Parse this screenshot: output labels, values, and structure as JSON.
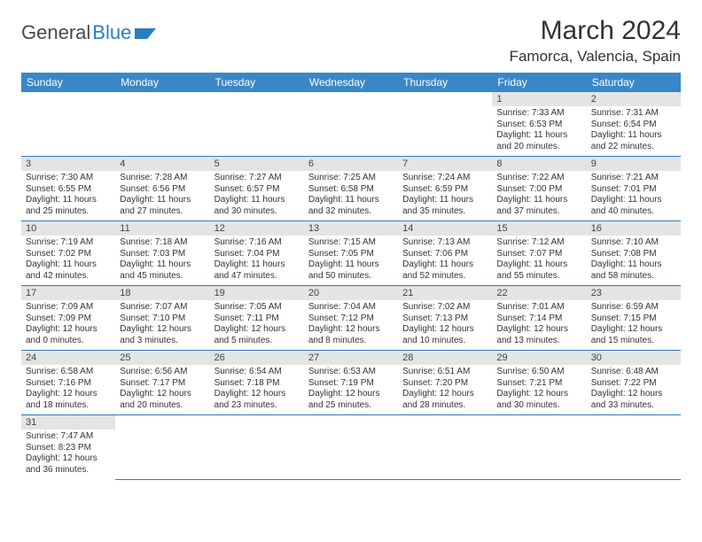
{
  "logo": {
    "text1": "General",
    "text2": "Blue"
  },
  "title": "March 2024",
  "location": "Famorca, Valencia, Spain",
  "weekdays": [
    "Sunday",
    "Monday",
    "Tuesday",
    "Wednesday",
    "Thursday",
    "Friday",
    "Saturday"
  ],
  "colors": {
    "header_bg": "#3a87c7",
    "row_divider": "#2a7fbf",
    "daynum_bg": "#e4e4e4"
  },
  "weeks": [
    [
      null,
      null,
      null,
      null,
      null,
      {
        "n": "1",
        "sr": "Sunrise: 7:33 AM",
        "ss": "Sunset: 6:53 PM",
        "d1": "Daylight: 11 hours",
        "d2": "and 20 minutes."
      },
      {
        "n": "2",
        "sr": "Sunrise: 7:31 AM",
        "ss": "Sunset: 6:54 PM",
        "d1": "Daylight: 11 hours",
        "d2": "and 22 minutes."
      }
    ],
    [
      {
        "n": "3",
        "sr": "Sunrise: 7:30 AM",
        "ss": "Sunset: 6:55 PM",
        "d1": "Daylight: 11 hours",
        "d2": "and 25 minutes."
      },
      {
        "n": "4",
        "sr": "Sunrise: 7:28 AM",
        "ss": "Sunset: 6:56 PM",
        "d1": "Daylight: 11 hours",
        "d2": "and 27 minutes."
      },
      {
        "n": "5",
        "sr": "Sunrise: 7:27 AM",
        "ss": "Sunset: 6:57 PM",
        "d1": "Daylight: 11 hours",
        "d2": "and 30 minutes."
      },
      {
        "n": "6",
        "sr": "Sunrise: 7:25 AM",
        "ss": "Sunset: 6:58 PM",
        "d1": "Daylight: 11 hours",
        "d2": "and 32 minutes."
      },
      {
        "n": "7",
        "sr": "Sunrise: 7:24 AM",
        "ss": "Sunset: 6:59 PM",
        "d1": "Daylight: 11 hours",
        "d2": "and 35 minutes."
      },
      {
        "n": "8",
        "sr": "Sunrise: 7:22 AM",
        "ss": "Sunset: 7:00 PM",
        "d1": "Daylight: 11 hours",
        "d2": "and 37 minutes."
      },
      {
        "n": "9",
        "sr": "Sunrise: 7:21 AM",
        "ss": "Sunset: 7:01 PM",
        "d1": "Daylight: 11 hours",
        "d2": "and 40 minutes."
      }
    ],
    [
      {
        "n": "10",
        "sr": "Sunrise: 7:19 AM",
        "ss": "Sunset: 7:02 PM",
        "d1": "Daylight: 11 hours",
        "d2": "and 42 minutes."
      },
      {
        "n": "11",
        "sr": "Sunrise: 7:18 AM",
        "ss": "Sunset: 7:03 PM",
        "d1": "Daylight: 11 hours",
        "d2": "and 45 minutes."
      },
      {
        "n": "12",
        "sr": "Sunrise: 7:16 AM",
        "ss": "Sunset: 7:04 PM",
        "d1": "Daylight: 11 hours",
        "d2": "and 47 minutes."
      },
      {
        "n": "13",
        "sr": "Sunrise: 7:15 AM",
        "ss": "Sunset: 7:05 PM",
        "d1": "Daylight: 11 hours",
        "d2": "and 50 minutes."
      },
      {
        "n": "14",
        "sr": "Sunrise: 7:13 AM",
        "ss": "Sunset: 7:06 PM",
        "d1": "Daylight: 11 hours",
        "d2": "and 52 minutes."
      },
      {
        "n": "15",
        "sr": "Sunrise: 7:12 AM",
        "ss": "Sunset: 7:07 PM",
        "d1": "Daylight: 11 hours",
        "d2": "and 55 minutes."
      },
      {
        "n": "16",
        "sr": "Sunrise: 7:10 AM",
        "ss": "Sunset: 7:08 PM",
        "d1": "Daylight: 11 hours",
        "d2": "and 58 minutes."
      }
    ],
    [
      {
        "n": "17",
        "sr": "Sunrise: 7:09 AM",
        "ss": "Sunset: 7:09 PM",
        "d1": "Daylight: 12 hours",
        "d2": "and 0 minutes."
      },
      {
        "n": "18",
        "sr": "Sunrise: 7:07 AM",
        "ss": "Sunset: 7:10 PM",
        "d1": "Daylight: 12 hours",
        "d2": "and 3 minutes."
      },
      {
        "n": "19",
        "sr": "Sunrise: 7:05 AM",
        "ss": "Sunset: 7:11 PM",
        "d1": "Daylight: 12 hours",
        "d2": "and 5 minutes."
      },
      {
        "n": "20",
        "sr": "Sunrise: 7:04 AM",
        "ss": "Sunset: 7:12 PM",
        "d1": "Daylight: 12 hours",
        "d2": "and 8 minutes."
      },
      {
        "n": "21",
        "sr": "Sunrise: 7:02 AM",
        "ss": "Sunset: 7:13 PM",
        "d1": "Daylight: 12 hours",
        "d2": "and 10 minutes."
      },
      {
        "n": "22",
        "sr": "Sunrise: 7:01 AM",
        "ss": "Sunset: 7:14 PM",
        "d1": "Daylight: 12 hours",
        "d2": "and 13 minutes."
      },
      {
        "n": "23",
        "sr": "Sunrise: 6:59 AM",
        "ss": "Sunset: 7:15 PM",
        "d1": "Daylight: 12 hours",
        "d2": "and 15 minutes."
      }
    ],
    [
      {
        "n": "24",
        "sr": "Sunrise: 6:58 AM",
        "ss": "Sunset: 7:16 PM",
        "d1": "Daylight: 12 hours",
        "d2": "and 18 minutes."
      },
      {
        "n": "25",
        "sr": "Sunrise: 6:56 AM",
        "ss": "Sunset: 7:17 PM",
        "d1": "Daylight: 12 hours",
        "d2": "and 20 minutes."
      },
      {
        "n": "26",
        "sr": "Sunrise: 6:54 AM",
        "ss": "Sunset: 7:18 PM",
        "d1": "Daylight: 12 hours",
        "d2": "and 23 minutes."
      },
      {
        "n": "27",
        "sr": "Sunrise: 6:53 AM",
        "ss": "Sunset: 7:19 PM",
        "d1": "Daylight: 12 hours",
        "d2": "and 25 minutes."
      },
      {
        "n": "28",
        "sr": "Sunrise: 6:51 AM",
        "ss": "Sunset: 7:20 PM",
        "d1": "Daylight: 12 hours",
        "d2": "and 28 minutes."
      },
      {
        "n": "29",
        "sr": "Sunrise: 6:50 AM",
        "ss": "Sunset: 7:21 PM",
        "d1": "Daylight: 12 hours",
        "d2": "and 30 minutes."
      },
      {
        "n": "30",
        "sr": "Sunrise: 6:48 AM",
        "ss": "Sunset: 7:22 PM",
        "d1": "Daylight: 12 hours",
        "d2": "and 33 minutes."
      }
    ],
    [
      {
        "n": "31",
        "sr": "Sunrise: 7:47 AM",
        "ss": "Sunset: 8:23 PM",
        "d1": "Daylight: 12 hours",
        "d2": "and 36 minutes."
      },
      null,
      null,
      null,
      null,
      null,
      null
    ]
  ]
}
